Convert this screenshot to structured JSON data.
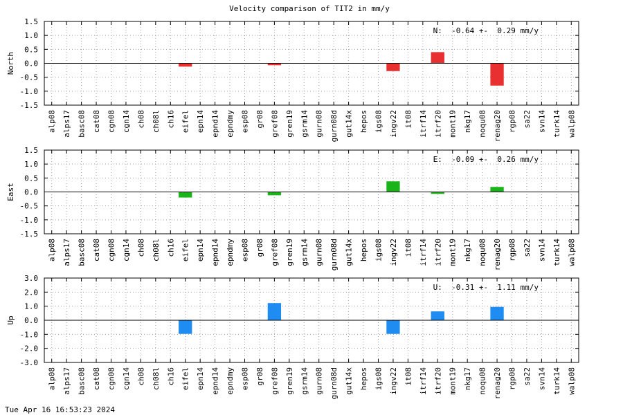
{
  "figure": {
    "title": "Velocity comparison of TIT2 in mm/y",
    "timestamp": "Tue Apr 16 16:53:23 2024"
  },
  "chart_data": [
    {
      "type": "bar",
      "ylabel": "North",
      "annotation": "N:  -0.64 +-  0.29 mm/y",
      "color": "#e83030",
      "ylim": [
        -1.5,
        1.5
      ],
      "yticks": [
        "-1.5",
        "-1.0",
        "-0.5",
        "0.0",
        "0.5",
        "1.0",
        "1.5"
      ],
      "grid": true,
      "categories": [
        "alp08",
        "alps17",
        "basc08",
        "cat08",
        "cgn08",
        "cgn14",
        "ch08",
        "ch08l",
        "ch16",
        "eifel",
        "epn14",
        "epnd14",
        "epndmy",
        "esp08",
        "gr08",
        "gref08",
        "gren19",
        "gsrm14",
        "gurn08",
        "gurn08d",
        "gut14x",
        "hepos",
        "igs08",
        "ingv22",
        "it08",
        "itrf14",
        "itrf20",
        "mont19",
        "nkg17",
        "noqu08",
        "renag20",
        "rgp08",
        "sa22",
        "svn14",
        "turk14",
        "walp08"
      ],
      "values": [
        null,
        null,
        null,
        null,
        null,
        null,
        null,
        null,
        null,
        -0.12,
        null,
        null,
        null,
        null,
        null,
        -0.07,
        null,
        null,
        null,
        null,
        null,
        null,
        null,
        -0.28,
        null,
        null,
        0.4,
        null,
        null,
        null,
        -0.8,
        null,
        null,
        null,
        null,
        null
      ]
    },
    {
      "type": "bar",
      "ylabel": "East",
      "annotation": "E:  -0.09 +-  0.26 mm/y",
      "color": "#1ab41a",
      "ylim": [
        -1.5,
        1.5
      ],
      "yticks": [
        "-1.5",
        "-1.0",
        "-0.5",
        "0.0",
        "0.5",
        "1.0",
        "1.5"
      ],
      "grid": true,
      "categories": [
        "alp08",
        "alps17",
        "basc08",
        "cat08",
        "cgn08",
        "cgn14",
        "ch08",
        "ch08l",
        "ch16",
        "eifel",
        "epn14",
        "epnd14",
        "epndmy",
        "esp08",
        "gr08",
        "gref08",
        "gren19",
        "gsrm14",
        "gurn08",
        "gurn08d",
        "gut14x",
        "hepos",
        "igs08",
        "ingv22",
        "it08",
        "itrf14",
        "itrf20",
        "mont19",
        "nkg17",
        "noqu08",
        "renag20",
        "rgp08",
        "sa22",
        "svn14",
        "turk14",
        "walp08"
      ],
      "values": [
        null,
        null,
        null,
        null,
        null,
        null,
        null,
        null,
        null,
        -0.2,
        null,
        null,
        null,
        null,
        null,
        -0.12,
        null,
        null,
        null,
        null,
        null,
        null,
        null,
        0.38,
        null,
        null,
        -0.07,
        null,
        null,
        null,
        0.18,
        null,
        null,
        null,
        null,
        null
      ]
    },
    {
      "type": "bar",
      "ylabel": "Up",
      "annotation": "U:  -0.31 +-  1.11 mm/y",
      "color": "#1e8cf0",
      "ylim": [
        -3.0,
        3.0
      ],
      "yticks": [
        "-3.0",
        "-2.0",
        "-1.0",
        "0.0",
        "1.0",
        "2.0",
        "3.0"
      ],
      "grid": true,
      "categories": [
        "alp08",
        "alps17",
        "basc08",
        "cat08",
        "cgn08",
        "cgn14",
        "ch08",
        "ch08l",
        "ch16",
        "eifel",
        "epn14",
        "epnd14",
        "epndmy",
        "esp08",
        "gr08",
        "gref08",
        "gren19",
        "gsrm14",
        "gurn08",
        "gurn08d",
        "gut14x",
        "hepos",
        "igs08",
        "ingv22",
        "it08",
        "itrf14",
        "itrf20",
        "mont19",
        "nkg17",
        "noqu08",
        "renag20",
        "rgp08",
        "sa22",
        "svn14",
        "turk14",
        "walp08"
      ],
      "values": [
        null,
        null,
        null,
        null,
        null,
        null,
        null,
        null,
        null,
        -0.97,
        null,
        null,
        null,
        null,
        null,
        1.22,
        null,
        null,
        null,
        null,
        null,
        null,
        null,
        -0.97,
        null,
        null,
        0.63,
        null,
        null,
        null,
        0.95,
        null,
        null,
        null,
        null,
        null
      ]
    }
  ]
}
